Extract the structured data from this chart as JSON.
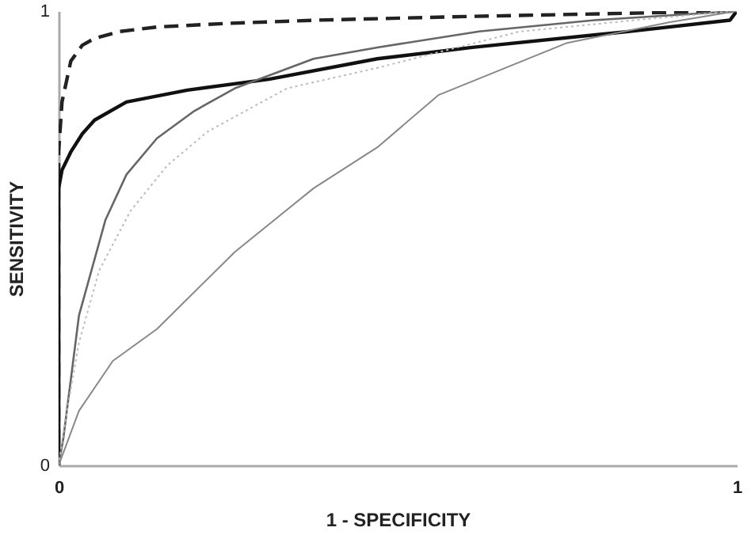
{
  "chart_data": {
    "type": "line",
    "xlabel": "1 - SPECIFICITY",
    "ylabel": "SENSITIVITY",
    "xlim": [
      0,
      1
    ],
    "ylim": [
      0,
      1
    ],
    "xticks": [
      0,
      1
    ],
    "yticks": [
      0,
      1
    ],
    "grid": false,
    "marker": "none",
    "series": [
      {
        "color": "#222222",
        "line_style": "dashed",
        "x": [
          0,
          0,
          0.005,
          0.018,
          0.035,
          0.053,
          0.09,
          0.145,
          0.25,
          0.38,
          0.6,
          0.8,
          1
        ],
        "values": [
          0,
          0.69,
          0.8,
          0.89,
          0.925,
          0.94,
          0.955,
          0.965,
          0.973,
          0.98,
          0.988,
          0.994,
          1
        ]
      },
      {
        "color": "#111111",
        "line_style": "solid",
        "x": [
          0,
          0,
          0.005,
          0.018,
          0.035,
          0.053,
          0.1,
          0.19,
          0.31,
          0.47,
          0.61,
          0.84,
          0.99,
          1
        ],
        "values": [
          0,
          0.61,
          0.65,
          0.69,
          0.73,
          0.76,
          0.8,
          0.826,
          0.85,
          0.895,
          0.92,
          0.955,
          0.98,
          1
        ]
      },
      {
        "color": "#666666",
        "line_style": "solid",
        "x": [
          0,
          0.007,
          0.03,
          0.069,
          0.1,
          0.145,
          0.2,
          0.26,
          0.376,
          0.47,
          0.62,
          0.79,
          1
        ],
        "values": [
          0,
          0.06,
          0.33,
          0.54,
          0.64,
          0.72,
          0.78,
          0.83,
          0.895,
          0.92,
          0.955,
          0.98,
          1
        ]
      },
      {
        "color": "#bbbbbb",
        "line_style": "dotted",
        "x": [
          0,
          0.01,
          0.03,
          0.06,
          0.106,
          0.16,
          0.22,
          0.337,
          0.47,
          0.68,
          0.85,
          1
        ],
        "values": [
          0,
          0.1,
          0.27,
          0.43,
          0.56,
          0.66,
          0.735,
          0.83,
          0.875,
          0.955,
          0.98,
          1
        ]
      },
      {
        "color": "#888888",
        "line_style": "solid",
        "x": [
          0,
          0.03,
          0.08,
          0.145,
          0.26,
          0.376,
          0.47,
          0.56,
          0.75,
          0.9,
          1
        ],
        "values": [
          0,
          0.12,
          0.23,
          0.3,
          0.47,
          0.61,
          0.7,
          0.815,
          0.93,
          0.975,
          1
        ]
      }
    ]
  }
}
